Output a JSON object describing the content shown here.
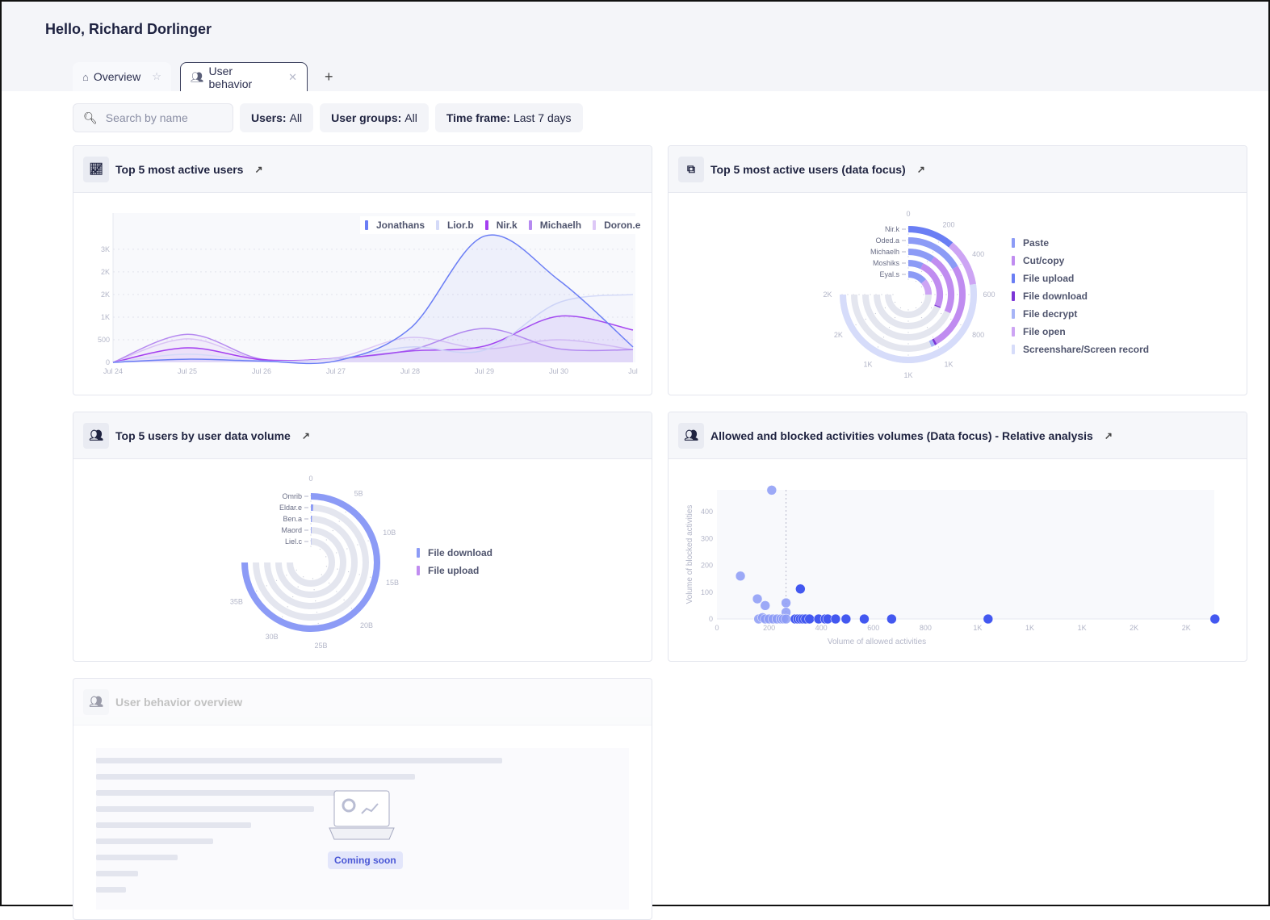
{
  "header": {
    "greeting": "Hello, Richard Dorlinger"
  },
  "tabs": [
    {
      "label": "Overview",
      "icon": "home-icon",
      "action_icon": "pin-icon"
    },
    {
      "label": "User behavior",
      "icon": "users-icon",
      "action_icon": "close-icon",
      "active": true
    }
  ],
  "add_tab": "+",
  "filters": {
    "search_placeholder": "Search by name",
    "users_label": "Users:",
    "users_value": "All",
    "groups_label": "User groups:",
    "groups_value": "All",
    "time_label": "Time frame:",
    "time_value": "Last 7 days"
  },
  "cards": {
    "c1": "Top 5 most active users",
    "c2": "Top 5 most active users (data focus)",
    "c3": "Top 5 users by user data volume",
    "c4": "Allowed and blocked activities volumes (Data focus) - Relative analysis",
    "c5": "User behavior overview"
  },
  "coming_soon": "Coming soon",
  "chart_data": [
    {
      "type": "line",
      "x": [
        "Jul 24",
        "Jul 25",
        "Jul 26",
        "Jul 27",
        "Jul 28",
        "Jul 29",
        "Jul 30",
        "Jul"
      ],
      "yticks": [
        0,
        500,
        1000,
        1500,
        2000,
        2500
      ],
      "ytick_labels": [
        "0",
        "500",
        "1K",
        "2K",
        "2K",
        "3K"
      ],
      "ylim": [
        0,
        3300
      ],
      "legend": "top-right",
      "grid": true,
      "series": [
        {
          "name": "Jonathans",
          "color": "#6b7ef5",
          "values": [
            0,
            70,
            30,
            30,
            750,
            2790,
            1820,
            340
          ]
        },
        {
          "name": "Lior.b",
          "color": "#d4daf8",
          "values": [
            0,
            180,
            30,
            80,
            340,
            270,
            1320,
            1500
          ]
        },
        {
          "name": "Nir.k",
          "color": "#a43ef0",
          "values": [
            0,
            320,
            60,
            80,
            250,
            360,
            1020,
            715
          ]
        },
        {
          "name": "Michaelh",
          "color": "#b68af0",
          "values": [
            0,
            620,
            70,
            90,
            270,
            750,
            300,
            280
          ]
        },
        {
          "name": "Doron.e",
          "color": "#ddc8f6",
          "values": [
            0,
            520,
            50,
            100,
            550,
            300,
            500,
            280
          ]
        }
      ]
    },
    {
      "type": "radial-bar",
      "max": 1800,
      "ticks": [
        0,
        200,
        400,
        600,
        800,
        1000,
        1200,
        1400,
        1600,
        1800
      ],
      "tick_labels": [
        "0",
        "200",
        "400",
        "600",
        "800",
        "1K",
        "1K",
        "1K",
        "2K",
        "2K"
      ],
      "categories": [
        "Nir.k",
        "Oded.a",
        "Michaelh",
        "Moshiks",
        "Eyal.s"
      ],
      "series": [
        {
          "name": "Paste",
          "color": "#8c9bf6",
          "values": [
            0,
            400,
            230,
            170,
            330
          ]
        },
        {
          "name": "Cut/copy",
          "color": "#c08cf0",
          "values": [
            0,
            600,
            530,
            570,
            0
          ]
        },
        {
          "name": "File upload",
          "color": "#6a7ef4",
          "values": [
            270,
            0,
            0,
            0,
            0
          ]
        },
        {
          "name": "File download",
          "color": "#7b35d6",
          "values": [
            0,
            15,
            0,
            12,
            0
          ]
        },
        {
          "name": "File decrypt",
          "color": "#a7b4f7",
          "values": [
            0,
            25,
            0,
            0,
            0
          ]
        },
        {
          "name": "File open",
          "color": "#cda4f4",
          "values": [
            270,
            0,
            0,
            0,
            270
          ]
        },
        {
          "name": "Screenshare/Screen record",
          "color": "#d6dcfa",
          "values": [
            1260,
            0,
            0,
            0,
            0
          ]
        }
      ]
    },
    {
      "type": "radial-bar",
      "max": 39,
      "ticks": [
        0,
        5,
        10,
        15,
        20,
        25,
        30,
        35
      ],
      "tick_labels": [
        "0",
        "5B",
        "10B",
        "15B",
        "20B",
        "25B",
        "30B",
        "35B"
      ],
      "categories": [
        "Omrib",
        "Eldar.e",
        "Ben.a",
        "Maord",
        "Liel.c"
      ],
      "series": [
        {
          "name": "File download",
          "color": "#8c9bf6",
          "values": [
            39,
            0.35,
            0.2,
            0.15,
            0.1
          ]
        },
        {
          "name": "File upload",
          "color": "#c08cf0",
          "values": [
            0,
            0,
            0,
            0,
            0
          ]
        }
      ]
    },
    {
      "type": "scatter",
      "xlabel": "Volume of allowed activities",
      "ylabel": "Volume of blocked activities",
      "xticks": [
        0,
        200,
        400,
        600,
        800,
        1000,
        1200,
        1400,
        1600,
        1800
      ],
      "xtick_labels": [
        "0",
        "200",
        "400",
        "600",
        "800",
        "1K",
        "1K",
        "1K",
        "2K",
        "2K"
      ],
      "yticks": [
        0,
        100,
        200,
        300,
        400
      ],
      "xlim": [
        0,
        1920
      ],
      "ylim": [
        0,
        480
      ],
      "reference_x": 265,
      "points": [
        [
          210,
          480
        ],
        [
          90,
          160
        ],
        [
          155,
          75
        ],
        [
          185,
          50
        ],
        [
          265,
          60
        ],
        [
          265,
          25
        ],
        [
          320,
          112
        ],
        [
          160,
          0
        ],
        [
          175,
          5
        ],
        [
          185,
          0
        ],
        [
          200,
          0
        ],
        [
          215,
          0
        ],
        [
          230,
          0
        ],
        [
          245,
          0
        ],
        [
          255,
          0
        ],
        [
          265,
          0
        ],
        [
          300,
          0
        ],
        [
          310,
          0
        ],
        [
          320,
          0
        ],
        [
          330,
          0
        ],
        [
          340,
          0
        ],
        [
          355,
          0
        ],
        [
          390,
          0
        ],
        [
          415,
          0
        ],
        [
          425,
          0
        ],
        [
          455,
          0
        ],
        [
          495,
          0
        ],
        [
          565,
          0
        ],
        [
          670,
          0
        ],
        [
          1040,
          0
        ],
        [
          1910,
          0
        ]
      ],
      "colors": {
        "light": "#8c9bf6",
        "dark": "#4358f0"
      }
    }
  ]
}
